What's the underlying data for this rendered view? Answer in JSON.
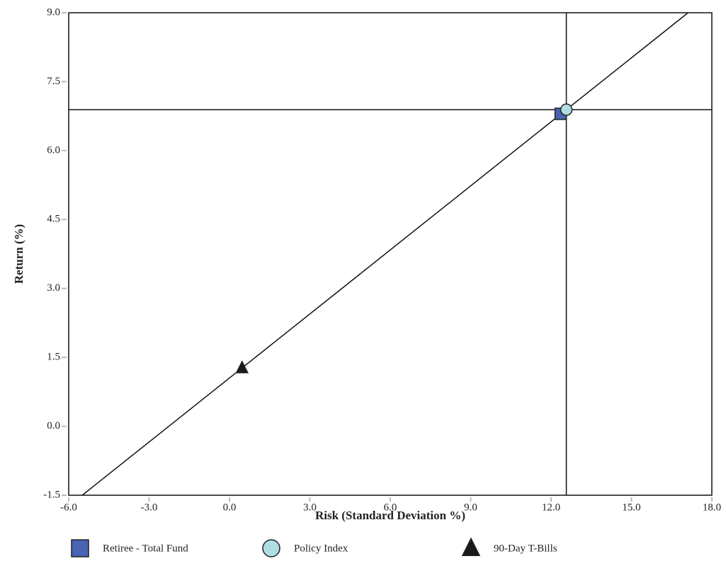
{
  "chart_data": {
    "type": "scatter",
    "x_label": "Risk (Standard Deviation %)",
    "y_label": "Return (%)",
    "xlim": [
      -6,
      18
    ],
    "ylim": [
      -1.5,
      9
    ],
    "xticks": [
      {
        "value": -6,
        "label": "-6.0"
      },
      {
        "value": -3,
        "label": "-3.0"
      },
      {
        "value": 0,
        "label": "0.0"
      },
      {
        "value": 3,
        "label": "3.0"
      },
      {
        "value": 6,
        "label": "6.0"
      },
      {
        "value": 9,
        "label": "9.0"
      },
      {
        "value": 12,
        "label": "12.0"
      },
      {
        "value": 15,
        "label": "15.0"
      },
      {
        "value": 18,
        "label": "18.0"
      }
    ],
    "yticks": [
      -1.5,
      {
        "value": 0,
        "label": "0.0"
      },
      1.5,
      {
        "value": 3,
        "label": "3.0"
      },
      4.5,
      {
        "value": 6,
        "label": "6.0"
      },
      7.5,
      {
        "value": 9,
        "label": "9.0"
      }
    ],
    "series": [
      {
        "name": "Retiree - Total Fund",
        "color": "#4a63b3",
        "marker": "square",
        "x": [
          12.36
        ],
        "values": [
          6.8
        ]
      },
      {
        "name": "Policy Index",
        "color": "#b0dde4",
        "marker": "circle",
        "x": [
          12.57
        ],
        "values": [
          6.89
        ]
      },
      {
        "name": "90-Day T-Bills",
        "color": "#1a1a1a",
        "marker": "triangle",
        "x": [
          0.47
        ],
        "values": [
          1.27
        ]
      }
    ]
  }
}
